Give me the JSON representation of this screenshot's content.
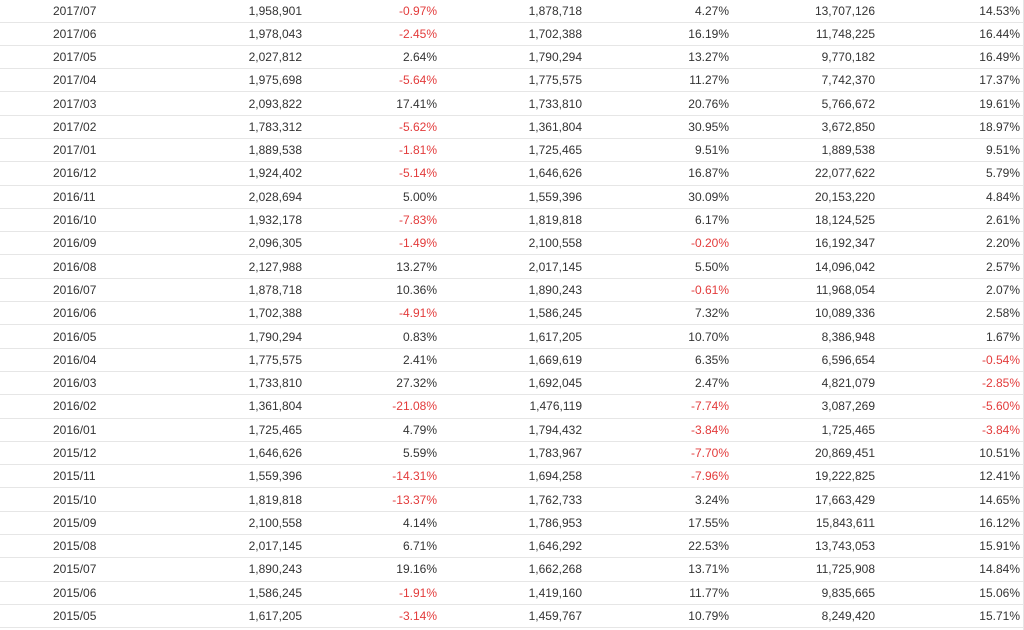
{
  "colors": {
    "negative": "#e33b3b",
    "positive": "#333333",
    "divider": "#e6e6e6"
  },
  "rows": [
    {
      "date": "2017/07",
      "v1": "1,958,901",
      "p1": "-0.97%",
      "v2": "1,878,718",
      "p2": "4.27%",
      "v3": "13,707,126",
      "p3": "14.53%"
    },
    {
      "date": "2017/06",
      "v1": "1,978,043",
      "p1": "-2.45%",
      "v2": "1,702,388",
      "p2": "16.19%",
      "v3": "11,748,225",
      "p3": "16.44%"
    },
    {
      "date": "2017/05",
      "v1": "2,027,812",
      "p1": "2.64%",
      "v2": "1,790,294",
      "p2": "13.27%",
      "v3": "9,770,182",
      "p3": "16.49%"
    },
    {
      "date": "2017/04",
      "v1": "1,975,698",
      "p1": "-5.64%",
      "v2": "1,775,575",
      "p2": "11.27%",
      "v3": "7,742,370",
      "p3": "17.37%"
    },
    {
      "date": "2017/03",
      "v1": "2,093,822",
      "p1": "17.41%",
      "v2": "1,733,810",
      "p2": "20.76%",
      "v3": "5,766,672",
      "p3": "19.61%"
    },
    {
      "date": "2017/02",
      "v1": "1,783,312",
      "p1": "-5.62%",
      "v2": "1,361,804",
      "p2": "30.95%",
      "v3": "3,672,850",
      "p3": "18.97%"
    },
    {
      "date": "2017/01",
      "v1": "1,889,538",
      "p1": "-1.81%",
      "v2": "1,725,465",
      "p2": "9.51%",
      "v3": "1,889,538",
      "p3": "9.51%"
    },
    {
      "date": "2016/12",
      "v1": "1,924,402",
      "p1": "-5.14%",
      "v2": "1,646,626",
      "p2": "16.87%",
      "v3": "22,077,622",
      "p3": "5.79%"
    },
    {
      "date": "2016/11",
      "v1": "2,028,694",
      "p1": "5.00%",
      "v2": "1,559,396",
      "p2": "30.09%",
      "v3": "20,153,220",
      "p3": "4.84%"
    },
    {
      "date": "2016/10",
      "v1": "1,932,178",
      "p1": "-7.83%",
      "v2": "1,819,818",
      "p2": "6.17%",
      "v3": "18,124,525",
      "p3": "2.61%"
    },
    {
      "date": "2016/09",
      "v1": "2,096,305",
      "p1": "-1.49%",
      "v2": "2,100,558",
      "p2": "-0.20%",
      "v3": "16,192,347",
      "p3": "2.20%"
    },
    {
      "date": "2016/08",
      "v1": "2,127,988",
      "p1": "13.27%",
      "v2": "2,017,145",
      "p2": "5.50%",
      "v3": "14,096,042",
      "p3": "2.57%"
    },
    {
      "date": "2016/07",
      "v1": "1,878,718",
      "p1": "10.36%",
      "v2": "1,890,243",
      "p2": "-0.61%",
      "v3": "11,968,054",
      "p3": "2.07%"
    },
    {
      "date": "2016/06",
      "v1": "1,702,388",
      "p1": "-4.91%",
      "v2": "1,586,245",
      "p2": "7.32%",
      "v3": "10,089,336",
      "p3": "2.58%"
    },
    {
      "date": "2016/05",
      "v1": "1,790,294",
      "p1": "0.83%",
      "v2": "1,617,205",
      "p2": "10.70%",
      "v3": "8,386,948",
      "p3": "1.67%"
    },
    {
      "date": "2016/04",
      "v1": "1,775,575",
      "p1": "2.41%",
      "v2": "1,669,619",
      "p2": "6.35%",
      "v3": "6,596,654",
      "p3": "-0.54%"
    },
    {
      "date": "2016/03",
      "v1": "1,733,810",
      "p1": "27.32%",
      "v2": "1,692,045",
      "p2": "2.47%",
      "v3": "4,821,079",
      "p3": "-2.85%"
    },
    {
      "date": "2016/02",
      "v1": "1,361,804",
      "p1": "-21.08%",
      "v2": "1,476,119",
      "p2": "-7.74%",
      "v3": "3,087,269",
      "p3": "-5.60%"
    },
    {
      "date": "2016/01",
      "v1": "1,725,465",
      "p1": "4.79%",
      "v2": "1,794,432",
      "p2": "-3.84%",
      "v3": "1,725,465",
      "p3": "-3.84%"
    },
    {
      "date": "2015/12",
      "v1": "1,646,626",
      "p1": "5.59%",
      "v2": "1,783,967",
      "p2": "-7.70%",
      "v3": "20,869,451",
      "p3": "10.51%"
    },
    {
      "date": "2015/11",
      "v1": "1,559,396",
      "p1": "-14.31%",
      "v2": "1,694,258",
      "p2": "-7.96%",
      "v3": "19,222,825",
      "p3": "12.41%"
    },
    {
      "date": "2015/10",
      "v1": "1,819,818",
      "p1": "-13.37%",
      "v2": "1,762,733",
      "p2": "3.24%",
      "v3": "17,663,429",
      "p3": "14.65%"
    },
    {
      "date": "2015/09",
      "v1": "2,100,558",
      "p1": "4.14%",
      "v2": "1,786,953",
      "p2": "17.55%",
      "v3": "15,843,611",
      "p3": "16.12%"
    },
    {
      "date": "2015/08",
      "v1": "2,017,145",
      "p1": "6.71%",
      "v2": "1,646,292",
      "p2": "22.53%",
      "v3": "13,743,053",
      "p3": "15.91%"
    },
    {
      "date": "2015/07",
      "v1": "1,890,243",
      "p1": "19.16%",
      "v2": "1,662,268",
      "p2": "13.71%",
      "v3": "11,725,908",
      "p3": "14.84%"
    },
    {
      "date": "2015/06",
      "v1": "1,586,245",
      "p1": "-1.91%",
      "v2": "1,419,160",
      "p2": "11.77%",
      "v3": "9,835,665",
      "p3": "15.06%"
    },
    {
      "date": "2015/05",
      "v1": "1,617,205",
      "p1": "-3.14%",
      "v2": "1,459,767",
      "p2": "10.79%",
      "v3": "8,249,420",
      "p3": "15.71%"
    }
  ]
}
